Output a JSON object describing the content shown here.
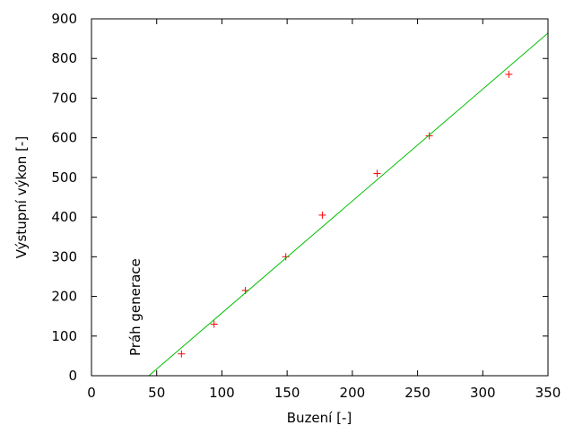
{
  "chart_data": {
    "type": "scatter",
    "title": "",
    "xlabel": "Buzení [-]",
    "ylabel": "Výstupní výkon [-]",
    "xlim": [
      0,
      350
    ],
    "ylim": [
      0,
      900
    ],
    "xticks": [
      0,
      50,
      100,
      150,
      200,
      250,
      300,
      350
    ],
    "yticks": [
      0,
      100,
      200,
      300,
      400,
      500,
      600,
      700,
      800,
      900
    ],
    "grid": false,
    "annotation": "Práh generace",
    "series": [
      {
        "kind": "points",
        "marker": "plus",
        "color": "#ff0000",
        "x": [
          69,
          94,
          118,
          149,
          177,
          219,
          259,
          320
        ],
        "y": [
          55,
          130,
          215,
          300,
          405,
          510,
          605,
          760
        ]
      },
      {
        "kind": "line",
        "color": "#00c000",
        "x": [
          44,
          350
        ],
        "y": [
          0,
          864
        ]
      }
    ]
  }
}
